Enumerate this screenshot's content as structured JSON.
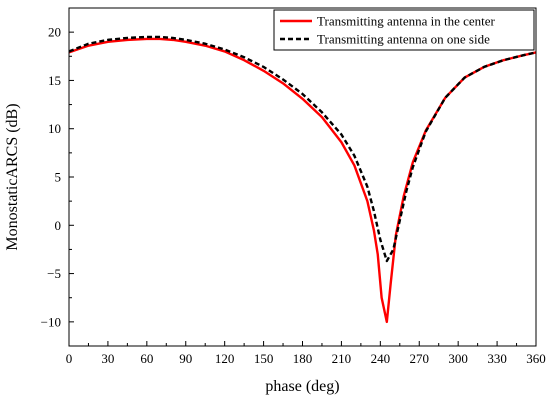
{
  "chart_data": {
    "type": "line",
    "title": "",
    "xlabel": "phase (deg)",
    "ylabel": "MonostaticARCS (dB)",
    "xlim": [
      0,
      360
    ],
    "ylim": [
      -12.5,
      22.5
    ],
    "xticks": [
      0,
      30,
      60,
      90,
      120,
      150,
      180,
      210,
      240,
      270,
      300,
      330,
      360
    ],
    "yticks": [
      -10,
      -5,
      0,
      5,
      10,
      15,
      20
    ],
    "grid": false,
    "legend_position": "top-right",
    "series": [
      {
        "name": "Transmitting antenna in the center",
        "color": "#ff0000",
        "style": "solid",
        "x": [
          0,
          15,
          30,
          45,
          60,
          70,
          80,
          90,
          105,
          120,
          135,
          150,
          165,
          180,
          195,
          210,
          220,
          230,
          235,
          238,
          241,
          245,
          248,
          252,
          258,
          265,
          275,
          290,
          305,
          320,
          335,
          350,
          360
        ],
        "y": [
          17.9,
          18.6,
          19.0,
          19.2,
          19.3,
          19.3,
          19.2,
          19.0,
          18.6,
          18.0,
          17.1,
          16.0,
          14.7,
          13.1,
          11.2,
          8.6,
          6.2,
          2.5,
          -0.5,
          -3.0,
          -7.5,
          -10.0,
          -6.0,
          -1.0,
          3.0,
          6.5,
          9.8,
          13.2,
          15.3,
          16.4,
          17.1,
          17.6,
          17.9
        ]
      },
      {
        "name": "Transmitting antenna on one side",
        "color": "#000000",
        "style": "dashed",
        "x": [
          0,
          15,
          30,
          45,
          60,
          70,
          80,
          90,
          105,
          120,
          135,
          150,
          165,
          180,
          195,
          210,
          220,
          230,
          235,
          240,
          245,
          250,
          255,
          260,
          265,
          275,
          290,
          305,
          320,
          335,
          350,
          360
        ],
        "y": [
          18.0,
          18.8,
          19.2,
          19.4,
          19.5,
          19.5,
          19.4,
          19.2,
          18.8,
          18.2,
          17.4,
          16.4,
          15.1,
          13.6,
          11.7,
          9.4,
          7.2,
          4.0,
          1.5,
          -1.5,
          -3.7,
          -2.5,
          0.5,
          3.5,
          6.0,
          9.7,
          13.2,
          15.3,
          16.4,
          17.1,
          17.6,
          17.9
        ]
      }
    ]
  }
}
